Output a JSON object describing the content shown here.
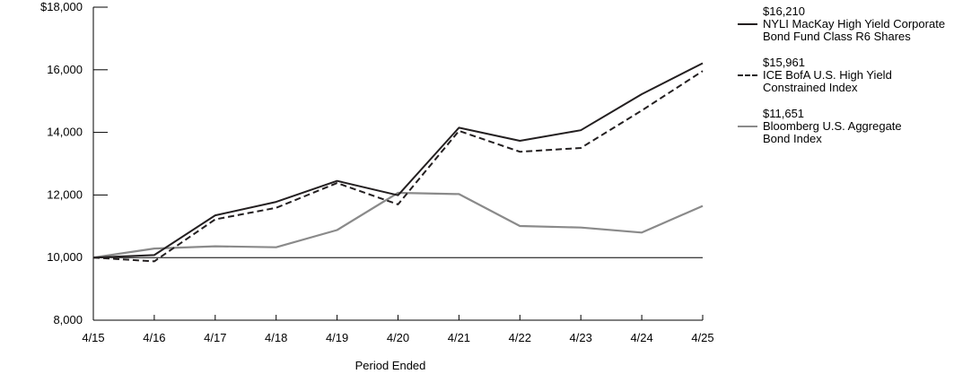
{
  "chart_data": {
    "type": "line",
    "xlabel": "Period Ended",
    "ylabel": "",
    "categories": [
      "4/15",
      "4/16",
      "4/17",
      "4/18",
      "4/19",
      "4/20",
      "4/21",
      "4/22",
      "4/23",
      "4/24",
      "4/25"
    ],
    "ylim": [
      8000,
      18000
    ],
    "yticks": [
      "$18,000",
      "16,000",
      "14,000",
      "12,000",
      "10,000",
      "8,000"
    ],
    "ytick_values": [
      18000,
      16000,
      14000,
      12000,
      10000,
      8000
    ],
    "baseline": 10000,
    "legend_position": "top-right",
    "grid": false,
    "series": [
      {
        "name": "NYLI MacKay High Yield Corporate Bond Fund Class R6 Shares",
        "name_lines": [
          "NYLI MacKay High Yield Corporate",
          "Bond Fund Class R6 Shares"
        ],
        "end_label": "$16,210",
        "color": "#231f20",
        "style": "solid",
        "values": [
          10000,
          10080,
          11350,
          11780,
          12450,
          11990,
          14150,
          13730,
          14070,
          15220,
          16210
        ]
      },
      {
        "name": "ICE BofA U.S. High Yield Constrained Index",
        "name_lines": [
          "ICE BofA U.S. High Yield",
          "Constrained Index"
        ],
        "end_label": "$15,961",
        "color": "#231f20",
        "style": "dashed",
        "values": [
          10000,
          9880,
          11220,
          11590,
          12380,
          11700,
          14050,
          13380,
          13500,
          14700,
          15961
        ]
      },
      {
        "name": "Bloomberg U.S. Aggregate Bond Index",
        "name_lines": [
          "Bloomberg U.S. Aggregate",
          "Bond Index"
        ],
        "end_label": "$11,651",
        "color": "#8a8a8a",
        "style": "solid",
        "values": [
          10000,
          10290,
          10360,
          10330,
          10880,
          12070,
          12030,
          11010,
          10960,
          10800,
          11651
        ]
      }
    ]
  }
}
